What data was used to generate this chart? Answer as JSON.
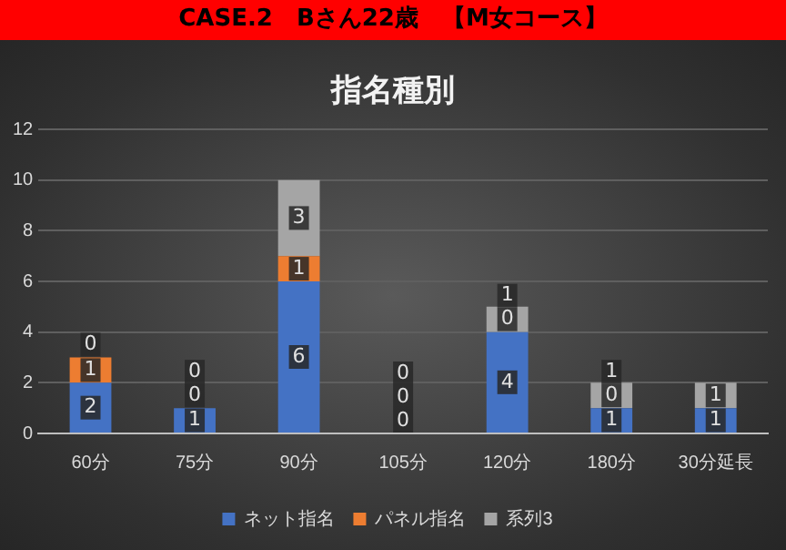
{
  "chart_data": {
    "type": "bar",
    "title": "CASE.2　Bさん22歳　【M女コース】",
    "subtitle": "指名種別",
    "categories": [
      "60分",
      "75分",
      "90分",
      "105分",
      "120分",
      "180分",
      "30分延長"
    ],
    "stacked": true,
    "series": [
      {
        "name": "ネット指名",
        "color": "#4472c4",
        "values": [
          2,
          1,
          6,
          0,
          4,
          1,
          1
        ],
        "value_labels": [
          "2",
          "1",
          "6",
          "0",
          "4",
          "1",
          "1"
        ]
      },
      {
        "name": "パネル指名",
        "color": "#ed7d31",
        "values": [
          1,
          0,
          1,
          0,
          0,
          0,
          0
        ],
        "value_labels": [
          "1",
          "0",
          "1",
          "0",
          "0",
          "0",
          null
        ]
      },
      {
        "name": "系列3",
        "color": "#a5a5a5",
        "values": [
          0,
          0,
          3,
          0,
          1,
          1,
          1
        ],
        "value_labels": [
          "0",
          "0",
          "3",
          "0",
          "1",
          "1",
          "1"
        ]
      }
    ],
    "ylim": [
      0,
      12
    ],
    "yticks": [
      0,
      2,
      4,
      6,
      8,
      10,
      12
    ],
    "grid": "y",
    "legend": "bottom"
  }
}
